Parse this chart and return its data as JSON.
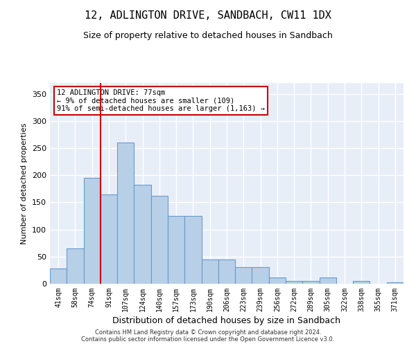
{
  "title": "12, ADLINGTON DRIVE, SANDBACH, CW11 1DX",
  "subtitle": "Size of property relative to detached houses in Sandbach",
  "xlabel": "Distribution of detached houses by size in Sandbach",
  "ylabel": "Number of detached properties",
  "categories": [
    "41sqm",
    "58sqm",
    "74sqm",
    "91sqm",
    "107sqm",
    "124sqm",
    "140sqm",
    "157sqm",
    "173sqm",
    "190sqm",
    "206sqm",
    "223sqm",
    "239sqm",
    "256sqm",
    "272sqm",
    "289sqm",
    "305sqm",
    "322sqm",
    "338sqm",
    "355sqm",
    "371sqm"
  ],
  "values": [
    28,
    65,
    195,
    165,
    260,
    182,
    162,
    125,
    125,
    45,
    45,
    30,
    30,
    12,
    5,
    5,
    12,
    0,
    5,
    0,
    3
  ],
  "bar_color": "#b8cfe8",
  "bar_edge_color": "#6699cc",
  "background_color": "#e8eef8",
  "grid_color": "#ffffff",
  "vline_color": "#cc0000",
  "vline_pos": 2.5,
  "annotation_text": "12 ADLINGTON DRIVE: 77sqm\n← 9% of detached houses are smaller (109)\n91% of semi-detached houses are larger (1,163) →",
  "annotation_box_color": "#ffffff",
  "annotation_box_edge": "#cc0000",
  "ylim": [
    0,
    370
  ],
  "yticks": [
    0,
    50,
    100,
    150,
    200,
    250,
    300,
    350
  ],
  "footer_line1": "Contains HM Land Registry data © Crown copyright and database right 2024.",
  "footer_line2": "Contains public sector information licensed under the Open Government Licence v3.0."
}
